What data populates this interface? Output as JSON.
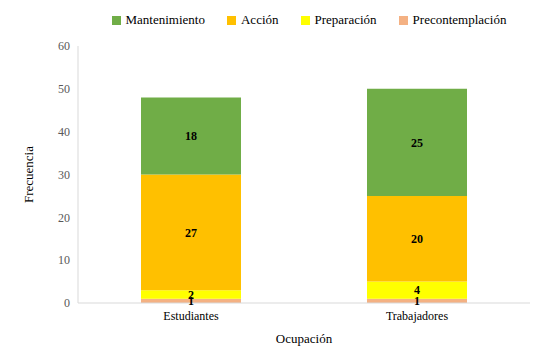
{
  "chart_data": {
    "type": "bar",
    "stacked": true,
    "data_labels": true,
    "legend": "top",
    "grid": false,
    "x_label": "Ocupación",
    "y_label": "Frecuencia",
    "categories": [
      "Estudiantes",
      "Trabajadores"
    ],
    "ylim": [
      0,
      60
    ],
    "yticks": [
      0,
      10,
      20,
      30,
      40,
      50,
      60
    ],
    "series": [
      {
        "name": "Precontemplación",
        "color": "#f4b183",
        "values": [
          1,
          1
        ]
      },
      {
        "name": "Preparación",
        "color": "#ffff00",
        "values": [
          2,
          4
        ]
      },
      {
        "name": "Acción",
        "color": "#ffc000",
        "values": [
          27,
          20
        ]
      },
      {
        "name": "Mantenimiento",
        "color": "#70ad47",
        "values": [
          18,
          25
        ]
      }
    ]
  }
}
